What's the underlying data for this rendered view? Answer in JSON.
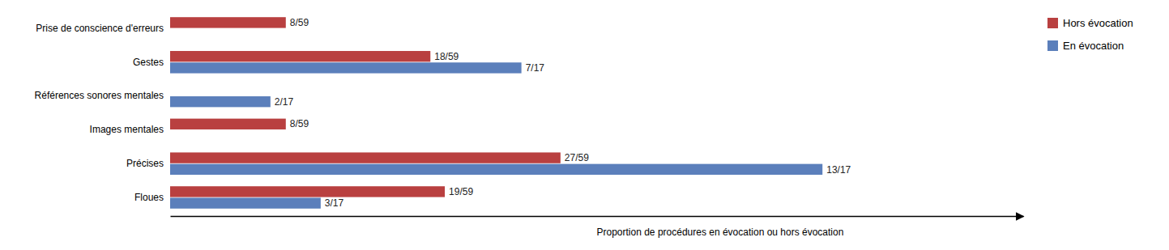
{
  "chart_data": {
    "type": "bar",
    "orientation": "horizontal",
    "xlabel": "Proportion de procédures en évocation ou hors évocation",
    "categories": [
      "Floues",
      "Précises",
      "Images mentales",
      "Références sonores mentales",
      "Gestes",
      "Prise de conscience d'erreurs"
    ],
    "series": [
      {
        "name": "Hors évocation",
        "color": "#b94040",
        "values": [
          0.322,
          0.4576,
          0.1356,
          0.0,
          0.3051,
          0.1356
        ],
        "value_labels": [
          "19/59",
          "27/59",
          "8/59",
          null,
          "18/59",
          "8/59"
        ]
      },
      {
        "name": "En évocation",
        "color": "#5b7fbb",
        "values": [
          0.1765,
          0.7647,
          0.0,
          0.1176,
          0.4118,
          0.0
        ],
        "value_labels": [
          "3/17",
          "13/17",
          null,
          "2/17",
          "7/17",
          null
        ]
      }
    ],
    "xlim": [
      0,
      1.0
    ],
    "xticks": [],
    "tick_labels": "y",
    "grid": false,
    "legend": "upper right"
  }
}
